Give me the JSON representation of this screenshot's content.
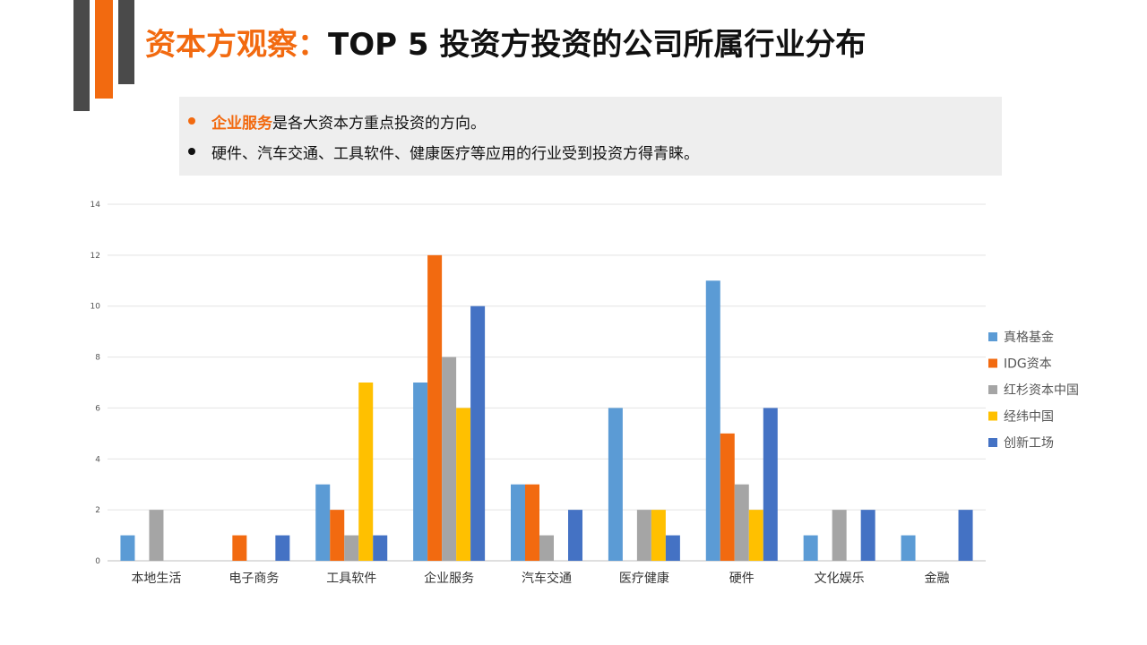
{
  "header": {
    "title_highlight": "资本方观察：",
    "title_rest": "TOP 5 投资方投资的公司所属行业分布"
  },
  "callout": {
    "bullets": [
      {
        "emphasis": "企业服务",
        "text": "是各大资本方重点投资的方向。",
        "dot_color": "#f26a10"
      },
      {
        "emphasis": "",
        "text": "硬件、汽车交通、工具软件、健康医疗等应用的行业受到投资方得青睐。",
        "dot_color": "#111111"
      }
    ]
  },
  "chart_data": {
    "type": "bar",
    "categories": [
      "本地生活",
      "电子商务",
      "工具软件",
      "企业服务",
      "汽车交通",
      "医疗健康",
      "硬件",
      "文化娱乐",
      "金融"
    ],
    "series": [
      {
        "name": "真格基金",
        "color": "#5b9bd5",
        "values": [
          1,
          0,
          3,
          7,
          3,
          6,
          11,
          1,
          1
        ]
      },
      {
        "name": "IDG资本",
        "color": "#f26a10",
        "values": [
          0,
          1,
          2,
          12,
          3,
          0,
          5,
          0,
          0
        ]
      },
      {
        "name": "红杉资本中国",
        "color": "#a5a5a5",
        "values": [
          2,
          0,
          1,
          8,
          1,
          2,
          3,
          2,
          0
        ]
      },
      {
        "name": "经纬中国",
        "color": "#ffc000",
        "values": [
          0,
          0,
          7,
          6,
          0,
          2,
          2,
          0,
          0
        ]
      },
      {
        "name": "创新工场",
        "color": "#4472c4",
        "values": [
          0,
          1,
          1,
          10,
          2,
          1,
          6,
          2,
          2
        ]
      }
    ],
    "ylim": [
      0,
      14
    ],
    "yticks": [
      0,
      2,
      4,
      6,
      8,
      10,
      12,
      14
    ],
    "grid": true,
    "legend_position": "right"
  }
}
